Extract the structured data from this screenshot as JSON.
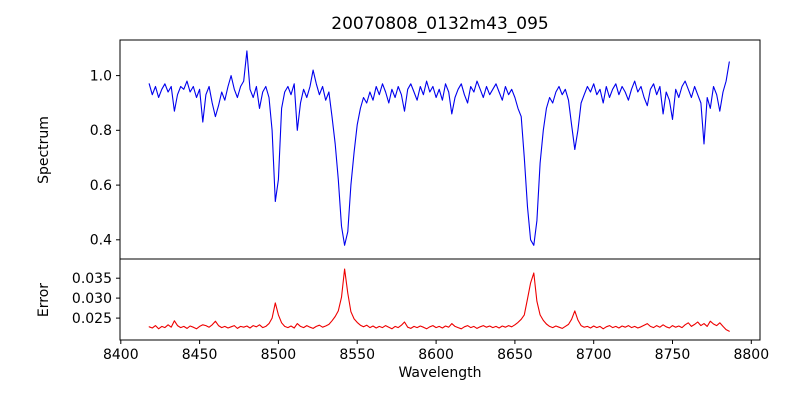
{
  "title": "20070808_0132m43_095",
  "colors": {
    "spectrum_line": "#0000ee",
    "error_line": "#ee0000",
    "axes": "#000000",
    "background": "#ffffff",
    "text": "#000000"
  },
  "chart_data": [
    {
      "type": "line",
      "name": "spectrum",
      "title": "20070808_0132m43_095",
      "ylabel": "Spectrum",
      "legend": "none",
      "grid": false,
      "color": "#0000ee",
      "x_start": 8418,
      "x_step": 2,
      "xlim": [
        8399.5,
        8805.5
      ],
      "ylim": [
        0.33,
        1.13
      ],
      "yticks": [
        0.4,
        0.6,
        0.8,
        1.0
      ],
      "ytick_labels": [
        "0.4",
        "0.6",
        "0.8",
        "1.0"
      ],
      "y": [
        0.97,
        0.93,
        0.96,
        0.92,
        0.95,
        0.97,
        0.94,
        0.96,
        0.87,
        0.93,
        0.96,
        0.95,
        0.98,
        0.94,
        0.96,
        0.92,
        0.95,
        0.83,
        0.93,
        0.96,
        0.9,
        0.85,
        0.89,
        0.94,
        0.91,
        0.96,
        1.0,
        0.95,
        0.92,
        0.96,
        0.98,
        1.09,
        0.95,
        0.92,
        0.96,
        0.88,
        0.94,
        0.96,
        0.92,
        0.8,
        0.54,
        0.62,
        0.88,
        0.94,
        0.96,
        0.93,
        0.97,
        0.8,
        0.9,
        0.95,
        0.92,
        0.96,
        1.02,
        0.97,
        0.93,
        0.96,
        0.91,
        0.94,
        0.85,
        0.75,
        0.62,
        0.45,
        0.38,
        0.43,
        0.6,
        0.72,
        0.82,
        0.88,
        0.92,
        0.9,
        0.94,
        0.91,
        0.96,
        0.93,
        0.97,
        0.94,
        0.9,
        0.95,
        0.92,
        0.96,
        0.93,
        0.87,
        0.95,
        0.97,
        0.94,
        0.91,
        0.96,
        0.93,
        0.98,
        0.94,
        0.96,
        0.92,
        0.95,
        0.91,
        0.97,
        0.94,
        0.86,
        0.92,
        0.95,
        0.97,
        0.93,
        0.9,
        0.96,
        0.94,
        0.98,
        0.95,
        0.92,
        0.96,
        0.93,
        0.95,
        0.97,
        0.94,
        0.91,
        0.96,
        0.93,
        0.95,
        0.92,
        0.88,
        0.85,
        0.7,
        0.52,
        0.4,
        0.38,
        0.47,
        0.68,
        0.8,
        0.88,
        0.92,
        0.9,
        0.94,
        0.96,
        0.93,
        0.95,
        0.91,
        0.82,
        0.73,
        0.8,
        0.9,
        0.93,
        0.96,
        0.94,
        0.97,
        0.93,
        0.95,
        0.9,
        0.96,
        0.92,
        0.95,
        0.97,
        0.93,
        0.96,
        0.94,
        0.91,
        0.95,
        0.98,
        0.94,
        0.96,
        0.92,
        0.89,
        0.95,
        0.97,
        0.93,
        0.96,
        0.86,
        0.94,
        0.91,
        0.84,
        0.95,
        0.92,
        0.96,
        0.98,
        0.95,
        0.92,
        0.96,
        0.93,
        0.9,
        0.75,
        0.92,
        0.88,
        0.96,
        0.93,
        0.87,
        0.94,
        0.98,
        1.05
      ]
    },
    {
      "type": "line",
      "name": "error",
      "ylabel": "Error",
      "xlabel": "Wavelength",
      "legend": "none",
      "grid": false,
      "color": "#ee0000",
      "x_start": 8418,
      "x_step": 2,
      "xlim": [
        8399.5,
        8805.5
      ],
      "ylim": [
        0.0195,
        0.0398
      ],
      "yticks": [
        0.025,
        0.03,
        0.035
      ],
      "ytick_labels": [
        "0.025",
        "0.030",
        "0.035"
      ],
      "xticks": [
        8400,
        8450,
        8500,
        8550,
        8600,
        8650,
        8700,
        8750,
        8800
      ],
      "xtick_labels": [
        "8400",
        "8450",
        "8500",
        "8550",
        "8600",
        "8650",
        "8700",
        "8750",
        "8800"
      ],
      "y": [
        0.0228,
        0.0225,
        0.0231,
        0.0223,
        0.0229,
        0.0226,
        0.0233,
        0.0227,
        0.0243,
        0.0231,
        0.0226,
        0.0229,
        0.0224,
        0.023,
        0.0227,
        0.0223,
        0.0229,
        0.0233,
        0.0231,
        0.0227,
        0.0233,
        0.0242,
        0.0231,
        0.0226,
        0.0229,
        0.0225,
        0.0228,
        0.0231,
        0.0224,
        0.0229,
        0.0227,
        0.023,
        0.0225,
        0.0231,
        0.0228,
        0.0233,
        0.0226,
        0.0229,
        0.0236,
        0.025,
        0.0288,
        0.0258,
        0.0238,
        0.0229,
        0.0226,
        0.023,
        0.0225,
        0.0236,
        0.0229,
        0.0226,
        0.0231,
        0.0227,
        0.0224,
        0.0229,
        0.0232,
        0.0227,
        0.023,
        0.0234,
        0.0243,
        0.0254,
        0.0268,
        0.0302,
        0.0373,
        0.0312,
        0.0266,
        0.0248,
        0.0239,
        0.0232,
        0.0228,
        0.0232,
        0.0226,
        0.023,
        0.0225,
        0.0229,
        0.0226,
        0.0231,
        0.0227,
        0.0223,
        0.0229,
        0.0226,
        0.0232,
        0.024,
        0.0227,
        0.0224,
        0.0229,
        0.0226,
        0.023,
        0.0227,
        0.0223,
        0.0228,
        0.0231,
        0.0226,
        0.0229,
        0.0225,
        0.023,
        0.0227,
        0.0236,
        0.0229,
        0.0226,
        0.0223,
        0.0228,
        0.0231,
        0.0226,
        0.0229,
        0.0224,
        0.0228,
        0.0231,
        0.0227,
        0.023,
        0.0226,
        0.0229,
        0.0225,
        0.023,
        0.0227,
        0.0231,
        0.0228,
        0.0233,
        0.0239,
        0.0247,
        0.0258,
        0.0298,
        0.0338,
        0.0363,
        0.0292,
        0.0258,
        0.0244,
        0.0235,
        0.0229,
        0.0226,
        0.023,
        0.0227,
        0.0224,
        0.0229,
        0.0234,
        0.0247,
        0.0268,
        0.0245,
        0.0231,
        0.0227,
        0.0229,
        0.0225,
        0.023,
        0.0226,
        0.0229,
        0.0223,
        0.0228,
        0.0231,
        0.0226,
        0.0229,
        0.0225,
        0.023,
        0.0227,
        0.0231,
        0.0226,
        0.0229,
        0.0225,
        0.0228,
        0.0232,
        0.0236,
        0.0229,
        0.0226,
        0.0231,
        0.0227,
        0.0233,
        0.0228,
        0.0225,
        0.0231,
        0.0227,
        0.023,
        0.0226,
        0.0233,
        0.0238,
        0.0229,
        0.0234,
        0.024,
        0.0231,
        0.0236,
        0.0229,
        0.0242,
        0.0235,
        0.0231,
        0.0238,
        0.0229,
        0.0221,
        0.0217
      ]
    }
  ]
}
